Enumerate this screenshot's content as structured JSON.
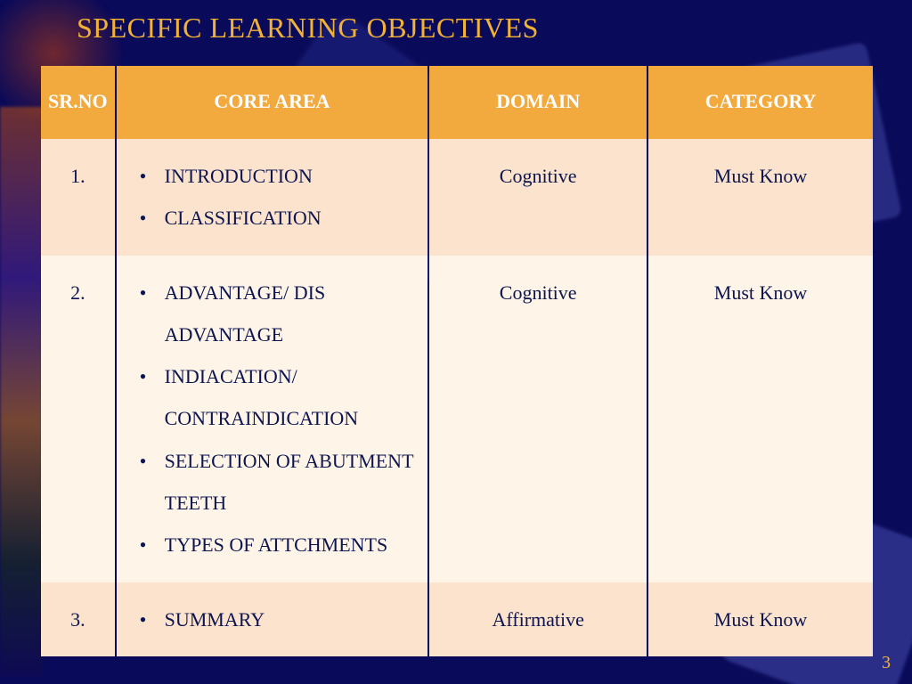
{
  "colors": {
    "background": "#0a0a5a",
    "title": "#f2b233",
    "header_bg": "#f2a93e",
    "header_text": "#ffffff",
    "row_alt_bg": "#fbe3cd",
    "row_bg": "#fef4e8",
    "cell_text": "#0d1550",
    "page_num": "#f2b233"
  },
  "title": "SPECIFIC LEARNING OBJECTIVES",
  "page_number": "3",
  "table": {
    "headers": {
      "sr": "SR.NO",
      "core": "CORE AREA",
      "domain": "DOMAIN",
      "category": "CATEGORY"
    },
    "rows": [
      {
        "sr": "1.",
        "core": [
          "INTRODUCTION",
          "CLASSIFICATION"
        ],
        "domain": "Cognitive",
        "category": "Must Know"
      },
      {
        "sr": "2.",
        "core": [
          "ADVANTAGE/ DIS ADVANTAGE",
          "INDIACATION/ CONTRAINDICATION",
          "SELECTION OF ABUTMENT TEETH",
          "TYPES OF ATTCHMENTS"
        ],
        "domain": "Cognitive",
        "category": "Must Know"
      },
      {
        "sr": "3.",
        "core": [
          "SUMMARY"
        ],
        "domain": "Affirmative",
        "category": "Must Know"
      }
    ]
  }
}
